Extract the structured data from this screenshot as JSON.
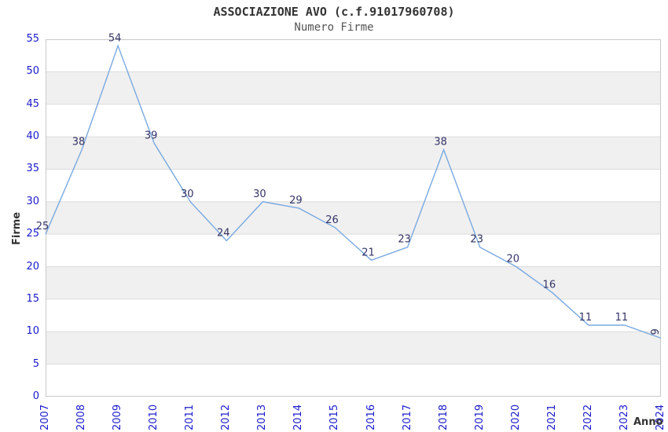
{
  "chart_data": {
    "type": "line",
    "title": "ASSOCIAZIONE AVO (c.f.91017960708)",
    "subtitle": "Numero Firme",
    "xlabel": "Anno",
    "ylabel": "Firme",
    "categories": [
      "2007",
      "2008",
      "2009",
      "2010",
      "2011",
      "2012",
      "2013",
      "2014",
      "2015",
      "2016",
      "2017",
      "2018",
      "2019",
      "2020",
      "2021",
      "2022",
      "2023",
      "2024"
    ],
    "values": [
      25,
      38,
      54,
      39,
      30,
      24,
      30,
      29,
      26,
      21,
      23,
      38,
      23,
      20,
      16,
      11,
      11,
      9
    ],
    "ylim": [
      0,
      55
    ],
    "ytick_step": 5,
    "grid": true,
    "legend": "none",
    "band_fill": "alternating horizontal stripes",
    "colors": {
      "line": "#79a9e0",
      "point_label": "#333366",
      "tick_label": "#1a1acc",
      "band": "#f0f0f0",
      "grid": "#dcdcdc",
      "plot_border": "#c9c9c9",
      "title": "#333333",
      "subtitle": "#555555",
      "axis_title": "#333333",
      "background": "#ffffff"
    }
  }
}
